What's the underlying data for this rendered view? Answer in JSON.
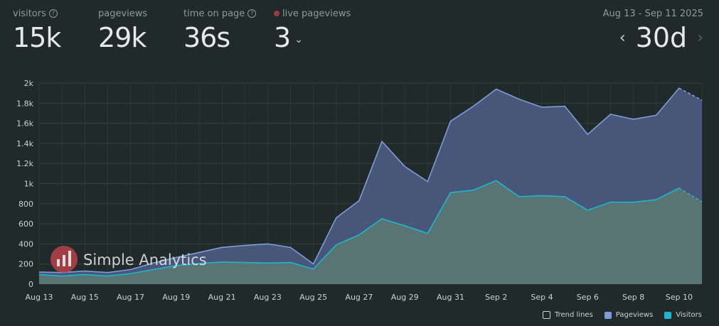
{
  "stats": {
    "visitors": {
      "label": "visitors",
      "value": "15k"
    },
    "pageviews": {
      "label": "pageviews",
      "value": "29k"
    },
    "time_on_page": {
      "label": "time on page",
      "value": "36s"
    },
    "live": {
      "label": "live pageviews",
      "value": "3"
    }
  },
  "date_range": "Aug 13 - Sep 11 2025",
  "period": "30d",
  "watermark": "Simple Analytics",
  "legend": {
    "trend": "Trend lines",
    "pageviews": "Pageviews",
    "visitors": "Visitors"
  },
  "colors": {
    "background": "#212a2a",
    "pageviews_fill": "#4b5a7d",
    "pageviews_line": "#7d9dd8",
    "visitors_fill": "#5b7773",
    "visitors_line": "#1fb6cf",
    "live_dot": "#a43a3e",
    "logo": "#b8414a"
  },
  "chart_data": {
    "type": "area",
    "x": [
      "Aug 13",
      "Aug 14",
      "Aug 15",
      "Aug 16",
      "Aug 17",
      "Aug 18",
      "Aug 19",
      "Aug 20",
      "Aug 21",
      "Aug 22",
      "Aug 23",
      "Aug 24",
      "Aug 25",
      "Aug 26",
      "Aug 27",
      "Aug 28",
      "Aug 29",
      "Aug 30",
      "Aug 31",
      "Sep 1",
      "Sep 2",
      "Sep 3",
      "Sep 4",
      "Sep 5",
      "Sep 6",
      "Sep 7",
      "Sep 8",
      "Sep 9",
      "Sep 10",
      "Sep 11"
    ],
    "x_tick_labels": [
      "Aug 13",
      "Aug 15",
      "Aug 17",
      "Aug 19",
      "Aug 21",
      "Aug 23",
      "Aug 25",
      "Aug 27",
      "Aug 29",
      "Aug 31",
      "Sep 2",
      "Sep 4",
      "Sep 6",
      "Sep 8",
      "Sep 10"
    ],
    "y_ticks": [
      0,
      200,
      400,
      600,
      800,
      1000,
      1200,
      1400,
      1600,
      1800,
      2000
    ],
    "y_tick_labels": [
      "0",
      "200",
      "400",
      "600",
      "800",
      "1k",
      "1.2k",
      "1.4k",
      "1.6k",
      "1.8k",
      "2k"
    ],
    "ylim": [
      0,
      2000
    ],
    "series": [
      {
        "name": "Pageviews",
        "values": [
          120,
          115,
          130,
          115,
          145,
          210,
          265,
          315,
          365,
          385,
          400,
          365,
          200,
          660,
          830,
          1420,
          1170,
          1020,
          1620,
          1770,
          1940,
          1840,
          1760,
          1770,
          1490,
          1690,
          1640,
          1680,
          1950,
          1830
        ]
      },
      {
        "name": "Visitors",
        "values": [
          95,
          80,
          95,
          80,
          105,
          145,
          185,
          205,
          220,
          215,
          210,
          215,
          150,
          390,
          490,
          650,
          580,
          505,
          910,
          935,
          1030,
          870,
          880,
          870,
          735,
          815,
          815,
          840,
          955,
          820
        ]
      }
    ],
    "last_point_dashed": true,
    "grid": true,
    "legend_position": "bottom-right"
  }
}
